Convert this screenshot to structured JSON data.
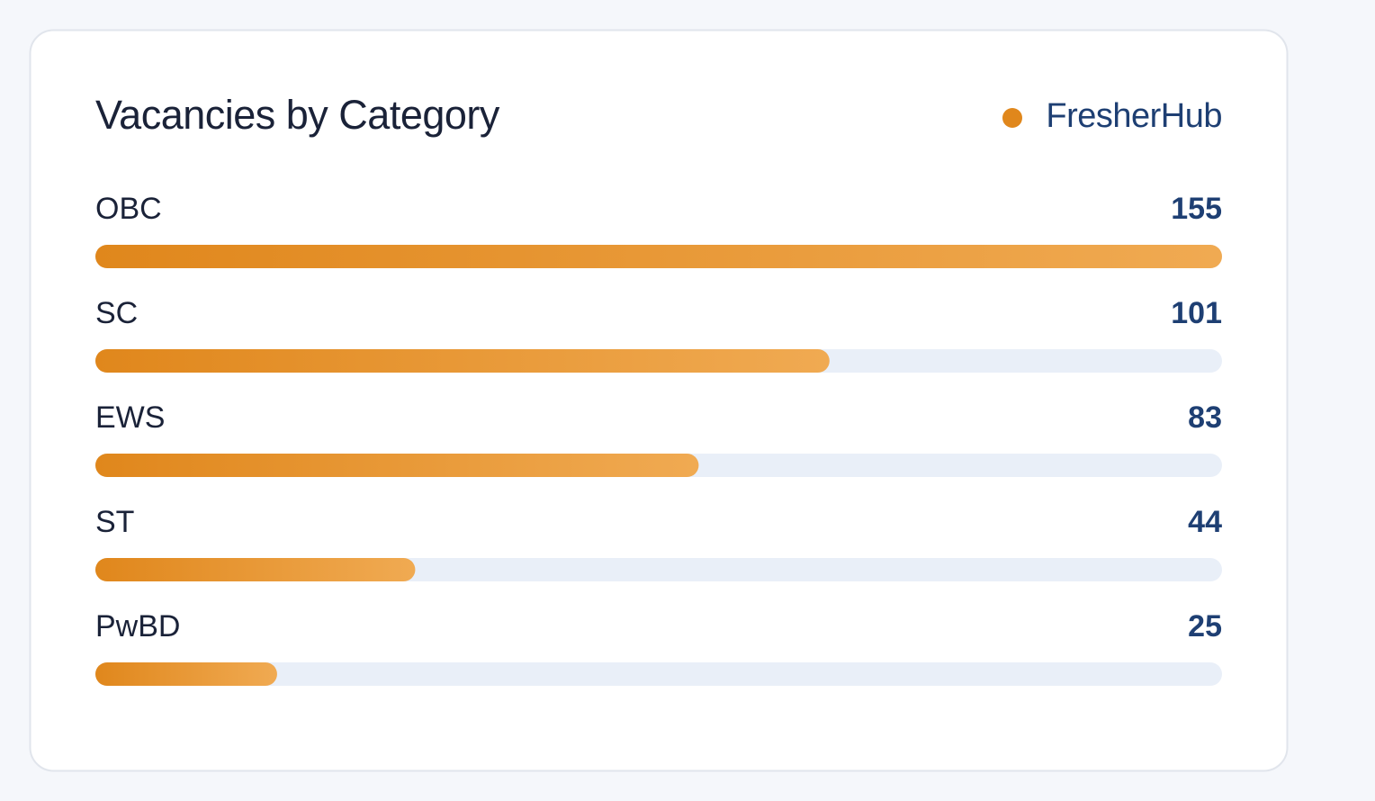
{
  "chart_data": {
    "type": "bar",
    "orientation": "horizontal",
    "title": "Vacancies by Category",
    "categories": [
      "OBC",
      "SC",
      "EWS",
      "ST",
      "PwBD"
    ],
    "series": [
      {
        "name": "FresherHub",
        "color": "#e0871c",
        "values": [
          155,
          101,
          83,
          44,
          25
        ]
      }
    ],
    "xlim": [
      0,
      155
    ]
  }
}
